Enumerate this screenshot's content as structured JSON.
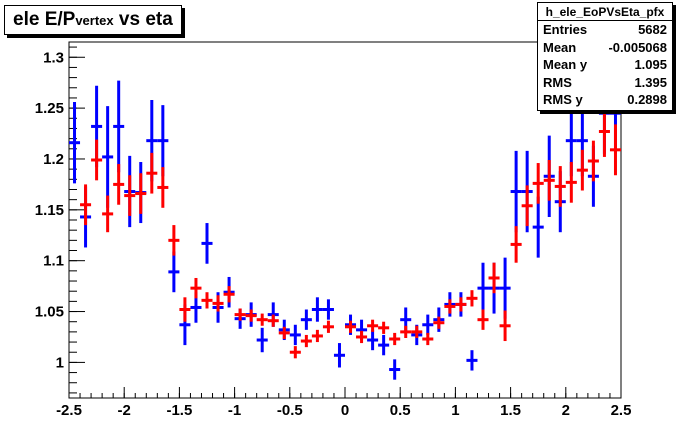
{
  "title": {
    "main": "ele E/P",
    "sub": "vertex",
    "tail": " vs eta"
  },
  "stats": {
    "name": "h_ele_EoPVsEta_pfx",
    "rows": [
      {
        "label": "Entries",
        "sub": "",
        "value": "5682"
      },
      {
        "label": "Mean",
        "sub": "",
        "value": "-0.005068"
      },
      {
        "label": "Mean y",
        "sub": "",
        "value": "1.095"
      },
      {
        "label": "RMS",
        "sub": "",
        "value": "1.395"
      },
      {
        "label": "RMS y",
        "sub": "",
        "value": "0.2898"
      }
    ]
  },
  "colors": {
    "series_blue": "#0000ff",
    "series_red": "#ff0000",
    "axis": "#000000",
    "background": "#ffffff"
  },
  "chart_data": {
    "type": "scatter",
    "title": "ele E/Pvertex vs eta",
    "xlim": [
      -2.5,
      2.5
    ],
    "ylim": [
      0.965,
      1.315
    ],
    "xticks": [
      "-2.5",
      "-2",
      "-1.5",
      "-1",
      "-0.5",
      "0",
      "0.5",
      "1",
      "1.5",
      "2",
      "2.5"
    ],
    "yticks": [
      "1",
      "1.05",
      "1.1",
      "1.15",
      "1.2",
      "1.25",
      "1.3"
    ],
    "grid": false,
    "legend": "none",
    "bin_half_width": 0.05,
    "series": [
      {
        "color": "#0000ff",
        "points": [
          {
            "x": -2.45,
            "y": 1.216,
            "err": 0.04
          },
          {
            "x": -2.35,
            "y": 1.143,
            "err": 0.03
          },
          {
            "x": -2.25,
            "y": 1.232,
            "err": 0.04
          },
          {
            "x": -2.15,
            "y": 1.202,
            "err": 0.05
          },
          {
            "x": -2.05,
            "y": 1.232,
            "err": 0.045
          },
          {
            "x": -1.95,
            "y": 1.168,
            "err": 0.035
          },
          {
            "x": -1.85,
            "y": 1.167,
            "err": 0.03
          },
          {
            "x": -1.75,
            "y": 1.218,
            "err": 0.04
          },
          {
            "x": -1.65,
            "y": 1.218,
            "err": 0.035
          },
          {
            "x": -1.55,
            "y": 1.089,
            "err": 0.02
          },
          {
            "x": -1.45,
            "y": 1.037,
            "err": 0.02
          },
          {
            "x": -1.35,
            "y": 1.054,
            "err": 0.015
          },
          {
            "x": -1.25,
            "y": 1.117,
            "err": 0.02
          },
          {
            "x": -1.15,
            "y": 1.054,
            "err": 0.015
          },
          {
            "x": -1.05,
            "y": 1.069,
            "err": 0.015
          },
          {
            "x": -0.95,
            "y": 1.043,
            "err": 0.01
          },
          {
            "x": -0.85,
            "y": 1.047,
            "err": 0.012
          },
          {
            "x": -0.75,
            "y": 1.022,
            "err": 0.012
          },
          {
            "x": -0.65,
            "y": 1.047,
            "err": 0.012
          },
          {
            "x": -0.55,
            "y": 1.032,
            "err": 0.01
          },
          {
            "x": -0.45,
            "y": 1.027,
            "err": 0.01
          },
          {
            "x": -0.35,
            "y": 1.042,
            "err": 0.01
          },
          {
            "x": -0.25,
            "y": 1.052,
            "err": 0.012
          },
          {
            "x": -0.15,
            "y": 1.052,
            "err": 0.01
          },
          {
            "x": -0.05,
            "y": 1.007,
            "err": 0.012
          },
          {
            "x": 0.05,
            "y": 1.037,
            "err": 0.01
          },
          {
            "x": 0.15,
            "y": 1.032,
            "err": 0.01
          },
          {
            "x": 0.25,
            "y": 1.022,
            "err": 0.01
          },
          {
            "x": 0.35,
            "y": 1.017,
            "err": 0.01
          },
          {
            "x": 0.45,
            "y": 0.993,
            "err": 0.01
          },
          {
            "x": 0.55,
            "y": 1.042,
            "err": 0.012
          },
          {
            "x": 0.65,
            "y": 1.027,
            "err": 0.01
          },
          {
            "x": 0.75,
            "y": 1.037,
            "err": 0.01
          },
          {
            "x": 0.85,
            "y": 1.042,
            "err": 0.012
          },
          {
            "x": 0.95,
            "y": 1.057,
            "err": 0.012
          },
          {
            "x": 1.05,
            "y": 1.057,
            "err": 0.012
          },
          {
            "x": 1.15,
            "y": 1.002,
            "err": 0.01
          },
          {
            "x": 1.25,
            "y": 1.073,
            "err": 0.025
          },
          {
            "x": 1.35,
            "y": 1.073,
            "err": 0.025
          },
          {
            "x": 1.45,
            "y": 1.073,
            "err": 0.03
          },
          {
            "x": 1.55,
            "y": 1.168,
            "err": 0.04
          },
          {
            "x": 1.65,
            "y": 1.168,
            "err": 0.04
          },
          {
            "x": 1.75,
            "y": 1.133,
            "err": 0.03
          },
          {
            "x": 1.85,
            "y": 1.183,
            "err": 0.04
          },
          {
            "x": 1.95,
            "y": 1.158,
            "err": 0.03
          },
          {
            "x": 2.05,
            "y": 1.218,
            "err": 0.035
          },
          {
            "x": 2.15,
            "y": 1.218,
            "err": 0.035
          },
          {
            "x": 2.25,
            "y": 1.183,
            "err": 0.03
          },
          {
            "x": 2.35,
            "y": 1.245,
            "err": 0.04
          },
          {
            "x": 2.45,
            "y": 1.245,
            "err": 0.04
          }
        ]
      },
      {
        "color": "#ff0000",
        "points": [
          {
            "x": -2.35,
            "y": 1.155,
            "err": 0.02
          },
          {
            "x": -2.25,
            "y": 1.199,
            "err": 0.02
          },
          {
            "x": -2.15,
            "y": 1.146,
            "err": 0.018
          },
          {
            "x": -2.05,
            "y": 1.175,
            "err": 0.02
          },
          {
            "x": -1.95,
            "y": 1.164,
            "err": 0.02
          },
          {
            "x": -1.85,
            "y": 1.166,
            "err": 0.02
          },
          {
            "x": -1.75,
            "y": 1.186,
            "err": 0.02
          },
          {
            "x": -1.65,
            "y": 1.172,
            "err": 0.02
          },
          {
            "x": -1.55,
            "y": 1.12,
            "err": 0.015
          },
          {
            "x": -1.45,
            "y": 1.052,
            "err": 0.012
          },
          {
            "x": -1.35,
            "y": 1.073,
            "err": 0.01
          },
          {
            "x": -1.25,
            "y": 1.061,
            "err": 0.008
          },
          {
            "x": -1.15,
            "y": 1.058,
            "err": 0.008
          },
          {
            "x": -1.05,
            "y": 1.067,
            "err": 0.008
          },
          {
            "x": -0.95,
            "y": 1.047,
            "err": 0.006
          },
          {
            "x": -0.85,
            "y": 1.046,
            "err": 0.006
          },
          {
            "x": -0.75,
            "y": 1.042,
            "err": 0.006
          },
          {
            "x": -0.65,
            "y": 1.041,
            "err": 0.006
          },
          {
            "x": -0.55,
            "y": 1.029,
            "err": 0.006
          },
          {
            "x": -0.45,
            "y": 1.01,
            "err": 0.006
          },
          {
            "x": -0.35,
            "y": 1.021,
            "err": 0.006
          },
          {
            "x": -0.25,
            "y": 1.026,
            "err": 0.006
          },
          {
            "x": -0.15,
            "y": 1.035,
            "err": 0.006
          },
          {
            "x": 0.05,
            "y": 1.035,
            "err": 0.006
          },
          {
            "x": 0.15,
            "y": 1.025,
            "err": 0.006
          },
          {
            "x": 0.25,
            "y": 1.036,
            "err": 0.006
          },
          {
            "x": 0.35,
            "y": 1.034,
            "err": 0.006
          },
          {
            "x": 0.45,
            "y": 1.023,
            "err": 0.006
          },
          {
            "x": 0.55,
            "y": 1.03,
            "err": 0.006
          },
          {
            "x": 0.65,
            "y": 1.03,
            "err": 0.006
          },
          {
            "x": 0.75,
            "y": 1.023,
            "err": 0.006
          },
          {
            "x": 0.85,
            "y": 1.039,
            "err": 0.006
          },
          {
            "x": 0.95,
            "y": 1.055,
            "err": 0.007
          },
          {
            "x": 1.05,
            "y": 1.057,
            "err": 0.007
          },
          {
            "x": 1.15,
            "y": 1.063,
            "err": 0.008
          },
          {
            "x": 1.25,
            "y": 1.042,
            "err": 0.01
          },
          {
            "x": 1.35,
            "y": 1.083,
            "err": 0.015
          },
          {
            "x": 1.45,
            "y": 1.036,
            "err": 0.015
          },
          {
            "x": 1.55,
            "y": 1.116,
            "err": 0.018
          },
          {
            "x": 1.65,
            "y": 1.154,
            "err": 0.02
          },
          {
            "x": 1.75,
            "y": 1.176,
            "err": 0.02
          },
          {
            "x": 1.85,
            "y": 1.179,
            "err": 0.02
          },
          {
            "x": 1.95,
            "y": 1.173,
            "err": 0.02
          },
          {
            "x": 2.05,
            "y": 1.177,
            "err": 0.02
          },
          {
            "x": 2.15,
            "y": 1.189,
            "err": 0.02
          },
          {
            "x": 2.25,
            "y": 1.198,
            "err": 0.02
          },
          {
            "x": 2.35,
            "y": 1.227,
            "err": 0.025
          },
          {
            "x": 2.45,
            "y": 1.209,
            "err": 0.025
          }
        ]
      }
    ]
  }
}
